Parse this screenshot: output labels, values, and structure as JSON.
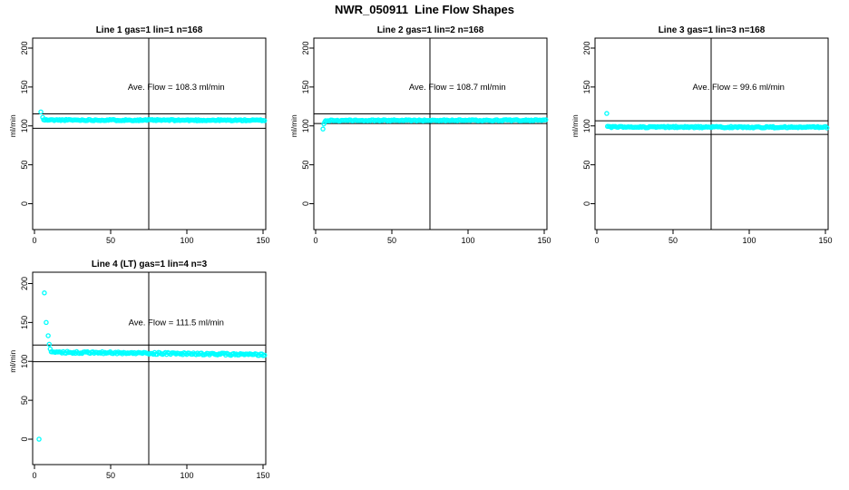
{
  "chart_data": {
    "type": "scatter",
    "title": "NWR_050911  Line Flow Shapes",
    "ylabel": "ml/min",
    "x_ticks": [
      0,
      50,
      100,
      150
    ],
    "y_ticks": [
      0,
      50,
      100,
      150,
      200
    ],
    "xlim": [
      -1,
      152
    ],
    "ylim": [
      -24,
      222
    ],
    "grid": "off",
    "point_color": "#00ffff",
    "line_color": "#000000",
    "vertical_ref_x": 75,
    "panels": [
      {
        "name": "line-1",
        "title": "Line 1 gas=1 lin=1 n=168",
        "annotation": "Ave. Flow =  108.3  ml/min",
        "ave_flow_ml_min": 108.3,
        "n": 168,
        "grid": {
          "row": 0,
          "col": 0
        },
        "ref_lines_y": [
          115.5,
          97
        ],
        "lead_points": [
          [
            4.2,
            118
          ],
          [
            5.4,
            111
          ]
        ],
        "band": {
          "x_start": 6,
          "x_end": 151,
          "n": 168,
          "y_start": 107.6,
          "y_end": 107.2,
          "jitter": 0.8
        },
        "seed": 11
      },
      {
        "name": "line-2",
        "title": "Line 2 gas=1 lin=2 n=168",
        "annotation": "Ave. Flow =  108.7  ml/min",
        "ave_flow_ml_min": 108.7,
        "n": 168,
        "grid": {
          "row": 0,
          "col": 1
        },
        "ref_lines_y": [
          115.5,
          103
        ],
        "lead_points": [
          [
            4.8,
            96
          ],
          [
            5.4,
            102.5
          ],
          [
            6,
            105
          ]
        ],
        "band": {
          "x_start": 6.5,
          "x_end": 151,
          "n": 168,
          "y_start": 107.0,
          "y_end": 107.3,
          "jitter": 0.8
        },
        "seed": 22
      },
      {
        "name": "line-3",
        "title": "Line 3 gas=1 lin=3 n=168",
        "annotation": "Ave. Flow =  99.6  ml/min",
        "ave_flow_ml_min": 99.6,
        "n": 168,
        "grid": {
          "row": 0,
          "col": 2
        },
        "ref_lines_y": [
          106.5,
          89
        ],
        "lead_points": [
          [
            6.5,
            116
          ]
        ],
        "band": {
          "x_start": 7,
          "x_end": 151,
          "n": 168,
          "y_start": 98.6,
          "y_end": 98.2,
          "jitter": 0.9
        },
        "seed": 33
      },
      {
        "name": "line-4",
        "title": "Line 4 (LT) gas=1 lin=4 n=3",
        "annotation": "Ave. Flow =  111.5  ml/min",
        "ave_flow_ml_min": 111.5,
        "n": 3,
        "grid": {
          "row": 1,
          "col": 0
        },
        "ref_lines_y": [
          121,
          99.5
        ],
        "lead_points": [
          [
            3,
            0
          ],
          [
            6.5,
            188
          ],
          [
            7.7,
            150
          ],
          [
            9,
            133
          ],
          [
            9.7,
            122
          ],
          [
            10.3,
            116
          ]
        ],
        "band": {
          "x_start": 11,
          "x_end": 151,
          "n": 160,
          "y_start": 112,
          "y_end": 108.5,
          "jitter": 1.3
        },
        "seed": 44
      }
    ]
  }
}
